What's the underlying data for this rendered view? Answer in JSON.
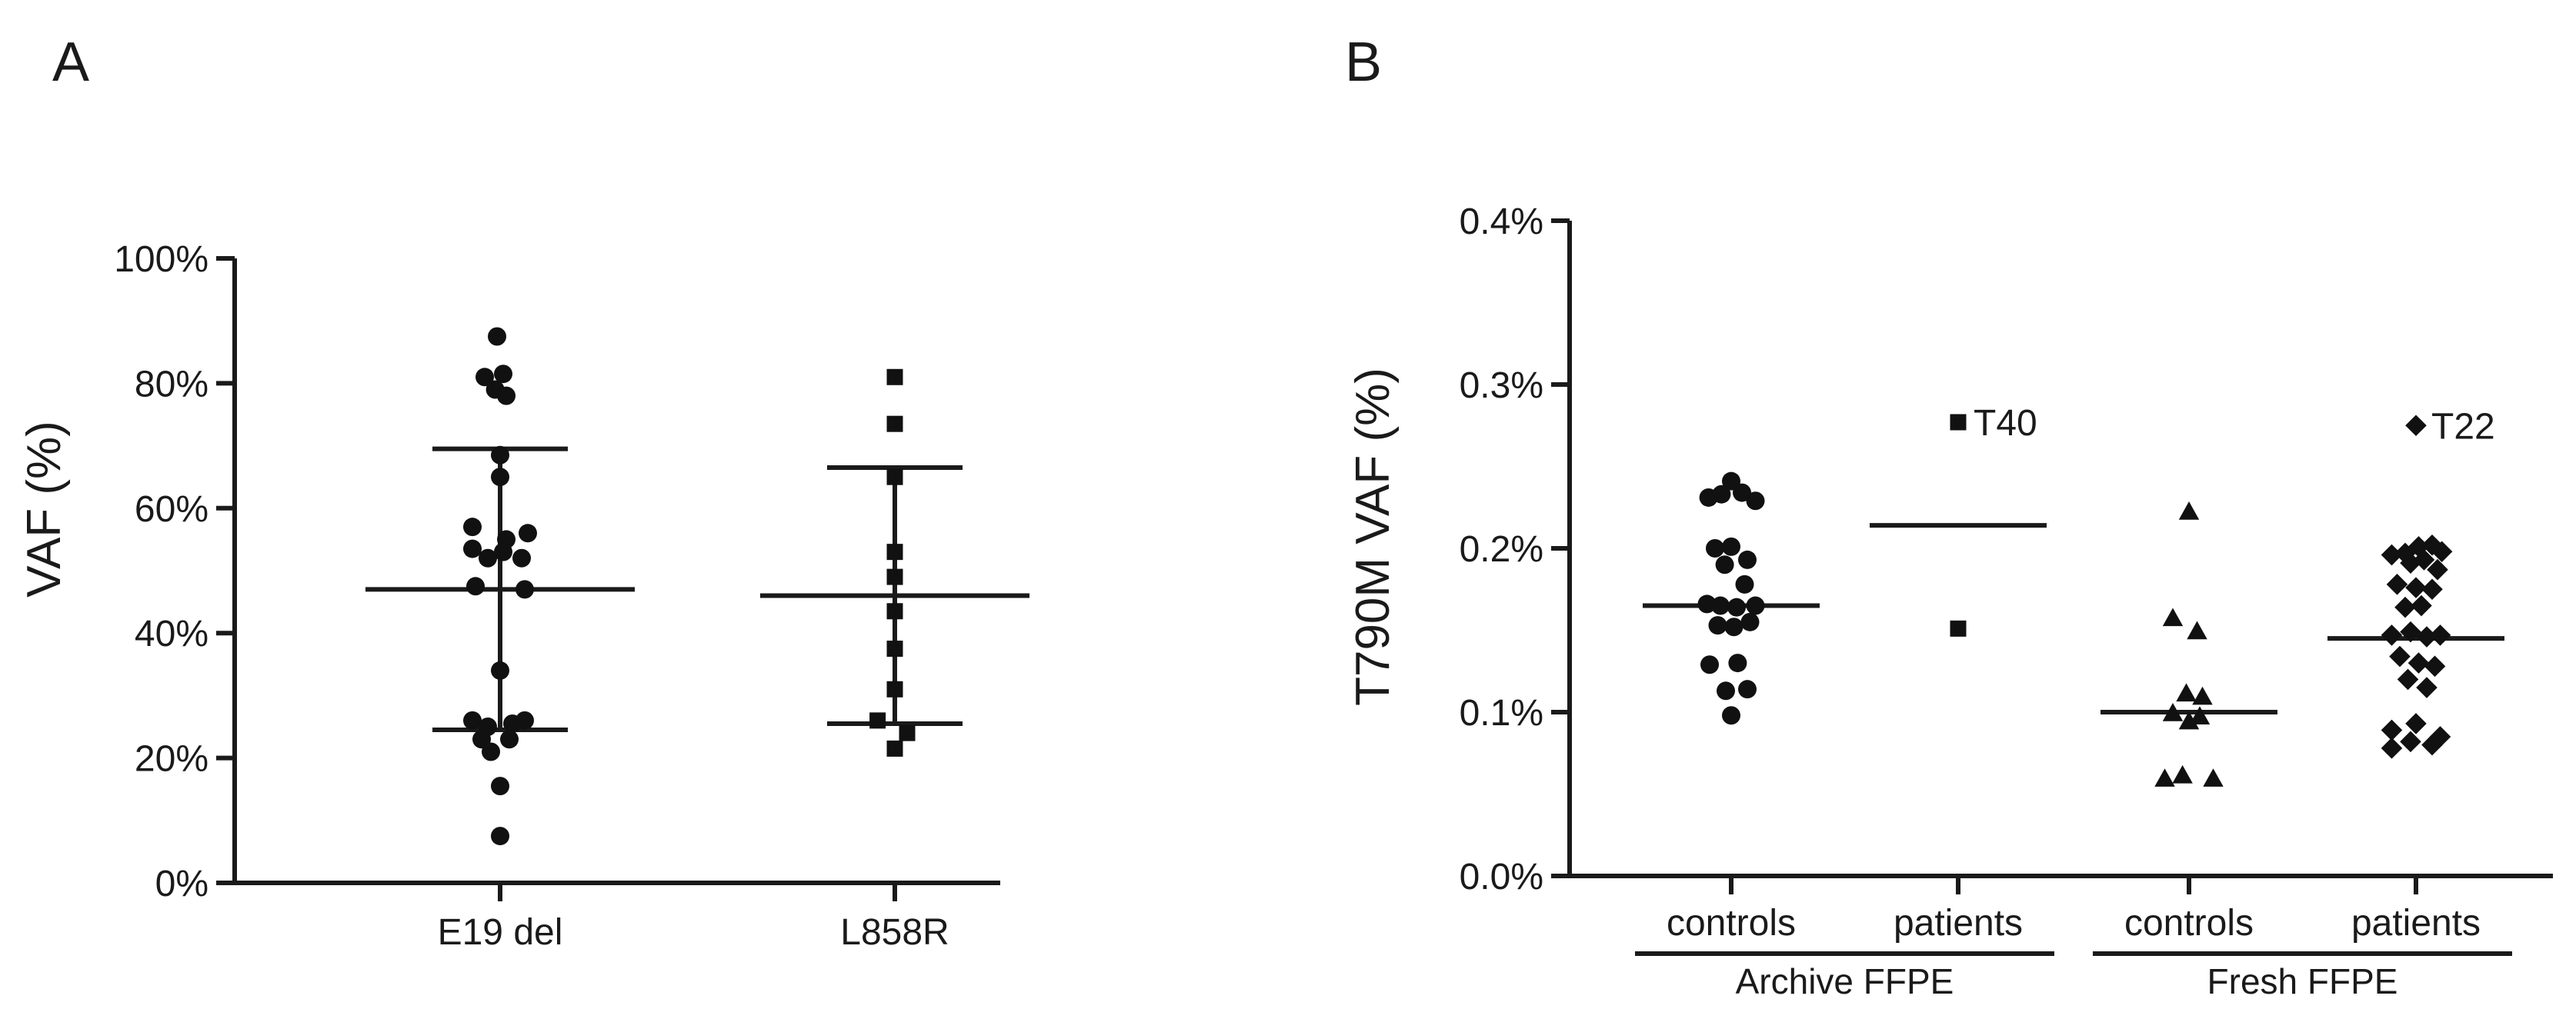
{
  "chart_data": [
    {
      "type": "scatter",
      "panel_label": "A",
      "ylabel": "VAF (%)",
      "ylim": [
        0,
        100
      ],
      "yticks": [
        0,
        20,
        40,
        60,
        80,
        100
      ],
      "ytick_labels": [
        "0%",
        "20%",
        "40%",
        "60%",
        "80%",
        "100%"
      ],
      "categories": [
        "E19 del",
        "L858R"
      ],
      "series": [
        {
          "name": "E19 del",
          "marker": "circle",
          "mean": 47,
          "sd_upper": 69.5,
          "sd_lower": 24.5,
          "points": [
            {
              "dx": -0.05,
              "y": 87.5
            },
            {
              "dx": -0.25,
              "y": 81
            },
            {
              "dx": 0.05,
              "y": 81.5
            },
            {
              "dx": -0.08,
              "y": 79
            },
            {
              "dx": 0.1,
              "y": 78
            },
            {
              "dx": 0.0,
              "y": 68.5
            },
            {
              "dx": 0.0,
              "y": 65
            },
            {
              "dx": -0.45,
              "y": 57
            },
            {
              "dx": 0.45,
              "y": 56
            },
            {
              "dx": 0.1,
              "y": 55
            },
            {
              "dx": -0.45,
              "y": 53.5
            },
            {
              "dx": 0.05,
              "y": 53
            },
            {
              "dx": -0.2,
              "y": 52
            },
            {
              "dx": 0.35,
              "y": 52
            },
            {
              "dx": -0.4,
              "y": 47.5
            },
            {
              "dx": 0.4,
              "y": 47
            },
            {
              "dx": 0.0,
              "y": 34
            },
            {
              "dx": -0.45,
              "y": 26
            },
            {
              "dx": -0.2,
              "y": 25
            },
            {
              "dx": 0.2,
              "y": 25.5
            },
            {
              "dx": 0.4,
              "y": 26
            },
            {
              "dx": -0.3,
              "y": 23
            },
            {
              "dx": 0.15,
              "y": 23
            },
            {
              "dx": -0.15,
              "y": 21
            },
            {
              "dx": 0.0,
              "y": 15.5
            },
            {
              "dx": 0.0,
              "y": 7.5
            }
          ]
        },
        {
          "name": "L858R",
          "marker": "square",
          "mean": 46,
          "sd_upper": 66.5,
          "sd_lower": 25.5,
          "points": [
            {
              "dx": 0.0,
              "y": 81
            },
            {
              "dx": 0.0,
              "y": 73.5
            },
            {
              "dx": 0.0,
              "y": 65
            },
            {
              "dx": 0.0,
              "y": 53
            },
            {
              "dx": 0.0,
              "y": 49
            },
            {
              "dx": 0.0,
              "y": 43.5
            },
            {
              "dx": 0.0,
              "y": 37.5
            },
            {
              "dx": 0.0,
              "y": 31
            },
            {
              "dx": -0.28,
              "y": 26
            },
            {
              "dx": 0.2,
              "y": 24
            },
            {
              "dx": 0.0,
              "y": 21.5
            }
          ]
        }
      ]
    },
    {
      "type": "scatter",
      "panel_label": "B",
      "ylabel": "T790M VAF (%)",
      "ylim": [
        0,
        0.4
      ],
      "yticks": [
        0,
        0.1,
        0.2,
        0.3,
        0.4
      ],
      "ytick_labels": [
        "0.0%",
        "0.1%",
        "0.2%",
        "0.3%",
        "0.4%"
      ],
      "categories": [
        "controls",
        "patients",
        "controls",
        "patients"
      ],
      "groups": [
        {
          "label": "Archive FFPE",
          "span": [
            0,
            1
          ]
        },
        {
          "label": "Fresh FFPE",
          "span": [
            2,
            3
          ]
        }
      ],
      "series": [
        {
          "name": "Archive FFPE controls",
          "marker": "circle",
          "median": 0.165,
          "points": [
            {
              "dx": 0.0,
              "y": 0.241
            },
            {
              "dx": -0.42,
              "y": 0.231
            },
            {
              "dx": -0.18,
              "y": 0.233
            },
            {
              "dx": 0.2,
              "y": 0.234
            },
            {
              "dx": 0.45,
              "y": 0.229
            },
            {
              "dx": -0.3,
              "y": 0.2
            },
            {
              "dx": 0.0,
              "y": 0.201
            },
            {
              "dx": -0.12,
              "y": 0.19
            },
            {
              "dx": 0.3,
              "y": 0.193
            },
            {
              "dx": 0.25,
              "y": 0.178
            },
            {
              "dx": -0.45,
              "y": 0.166
            },
            {
              "dx": -0.2,
              "y": 0.165
            },
            {
              "dx": 0.1,
              "y": 0.164
            },
            {
              "dx": 0.45,
              "y": 0.165
            },
            {
              "dx": -0.25,
              "y": 0.153
            },
            {
              "dx": 0.05,
              "y": 0.152
            },
            {
              "dx": 0.35,
              "y": 0.155
            },
            {
              "dx": -0.4,
              "y": 0.129
            },
            {
              "dx": 0.12,
              "y": 0.13
            },
            {
              "dx": -0.1,
              "y": 0.113
            },
            {
              "dx": 0.3,
              "y": 0.114
            },
            {
              "dx": 0.0,
              "y": 0.098
            }
          ]
        },
        {
          "name": "Archive FFPE patients",
          "marker": "square",
          "median": 0.214,
          "points": [
            {
              "dx": 0.0,
              "y": 0.277,
              "label": "T40"
            },
            {
              "dx": 0.0,
              "y": 0.151
            }
          ]
        },
        {
          "name": "Fresh FFPE controls",
          "marker": "triangle",
          "median": 0.1,
          "points": [
            {
              "dx": 0.0,
              "y": 0.222
            },
            {
              "dx": -0.3,
              "y": 0.157
            },
            {
              "dx": 0.15,
              "y": 0.149
            },
            {
              "dx": -0.05,
              "y": 0.111
            },
            {
              "dx": 0.25,
              "y": 0.109
            },
            {
              "dx": -0.3,
              "y": 0.099
            },
            {
              "dx": 0.2,
              "y": 0.097
            },
            {
              "dx": 0.0,
              "y": 0.094
            },
            {
              "dx": -0.45,
              "y": 0.059
            },
            {
              "dx": -0.12,
              "y": 0.061
            },
            {
              "dx": 0.45,
              "y": 0.059
            }
          ]
        },
        {
          "name": "Fresh FFPE patients",
          "marker": "diamond",
          "median": 0.145,
          "points": [
            {
              "dx": 0.0,
              "y": 0.275,
              "label": "T22"
            },
            {
              "dx": -0.45,
              "y": 0.196
            },
            {
              "dx": -0.2,
              "y": 0.197
            },
            {
              "dx": 0.05,
              "y": 0.201
            },
            {
              "dx": 0.3,
              "y": 0.202
            },
            {
              "dx": 0.48,
              "y": 0.198
            },
            {
              "dx": -0.1,
              "y": 0.191
            },
            {
              "dx": 0.15,
              "y": 0.193
            },
            {
              "dx": 0.4,
              "y": 0.187
            },
            {
              "dx": -0.35,
              "y": 0.178
            },
            {
              "dx": 0.0,
              "y": 0.176
            },
            {
              "dx": 0.3,
              "y": 0.175
            },
            {
              "dx": -0.2,
              "y": 0.164
            },
            {
              "dx": 0.1,
              "y": 0.165
            },
            {
              "dx": -0.45,
              "y": 0.147
            },
            {
              "dx": -0.1,
              "y": 0.149
            },
            {
              "dx": 0.2,
              "y": 0.146
            },
            {
              "dx": 0.45,
              "y": 0.147
            },
            {
              "dx": -0.3,
              "y": 0.134
            },
            {
              "dx": 0.05,
              "y": 0.13
            },
            {
              "dx": 0.35,
              "y": 0.128
            },
            {
              "dx": -0.15,
              "y": 0.12
            },
            {
              "dx": 0.2,
              "y": 0.115
            },
            {
              "dx": -0.45,
              "y": 0.089
            },
            {
              "dx": 0.0,
              "y": 0.093
            },
            {
              "dx": 0.45,
              "y": 0.085
            },
            {
              "dx": -0.45,
              "y": 0.078
            },
            {
              "dx": -0.1,
              "y": 0.082
            },
            {
              "dx": 0.3,
              "y": 0.08
            }
          ]
        }
      ]
    }
  ]
}
